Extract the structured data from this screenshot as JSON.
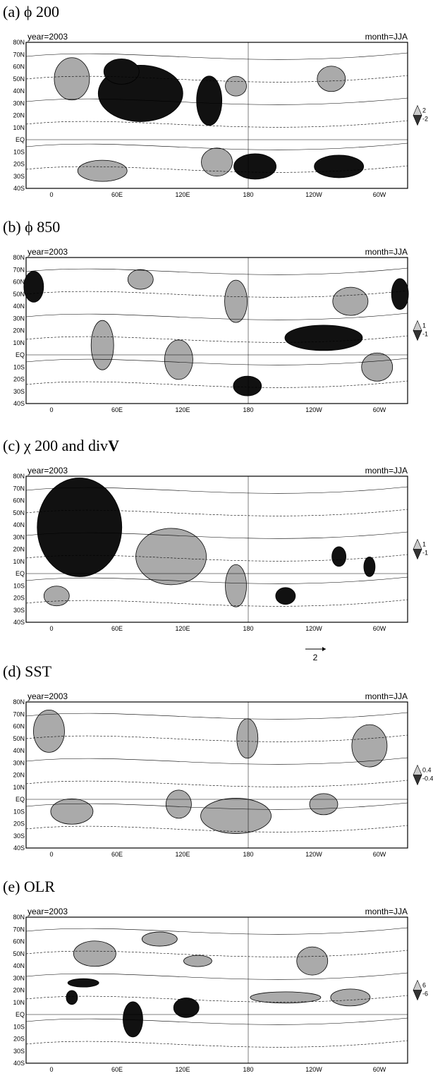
{
  "panels": [
    {
      "title": "(a) ϕ 200",
      "year": "year=2003",
      "month": "month=JJA",
      "colorbar": [
        "2",
        "-2"
      ]
    },
    {
      "title": "(b) ϕ 850",
      "year": "year=2003",
      "month": "month=JJA",
      "colorbar": [
        "1",
        "-1"
      ]
    },
    {
      "title": "(c) χ 200 and div",
      "title_bold": "V",
      "year": "year=2003",
      "month": "month=JJA",
      "colorbar": [
        "1",
        "-1"
      ],
      "vector_scale": "2"
    },
    {
      "title": "(d) SST",
      "year": "year=2003",
      "month": "month=JJA",
      "colorbar": [
        "0.4",
        "-0.4"
      ]
    },
    {
      "title": "(e) OLR",
      "year": "year=2003",
      "month": "month=JJA",
      "colorbar": [
        "6",
        "-6"
      ]
    }
  ],
  "lat_labels": [
    "80N",
    "70N",
    "60N",
    "50N",
    "40N",
    "30N",
    "20N",
    "10N",
    "EQ",
    "10S",
    "20S",
    "30S",
    "40S"
  ],
  "lon_labels": [
    "0",
    "60E",
    "120E",
    "180",
    "120W",
    "60W"
  ]
}
